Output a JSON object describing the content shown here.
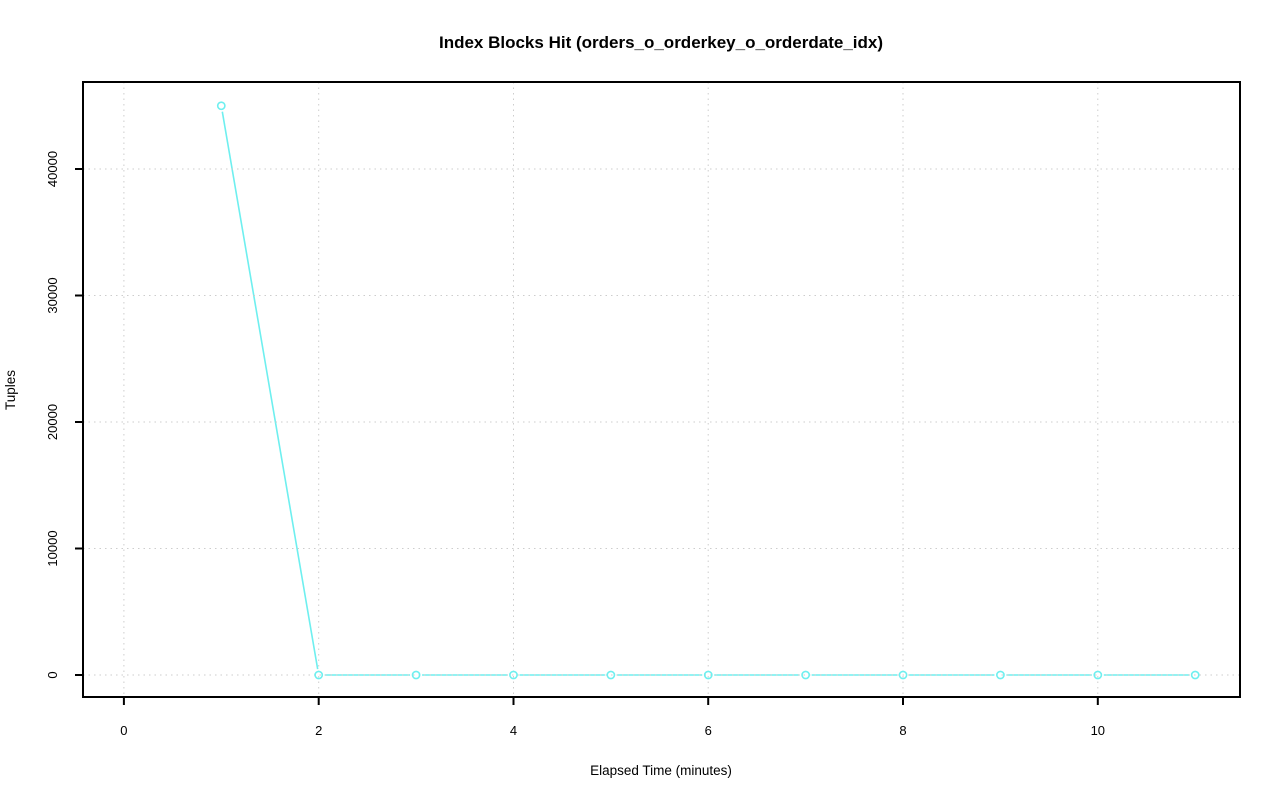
{
  "figure": {
    "background_color": "#ffffff"
  },
  "chart_data": {
    "type": "line",
    "title": "Index Blocks Hit (orders_o_orderkey_o_orderdate_idx)",
    "xlabel": "Elapsed Time (minutes)",
    "ylabel": "Tuples",
    "series": [
      {
        "name": "index-blocks-hit",
        "x": [
          1,
          2,
          3,
          4,
          5,
          6,
          7,
          8,
          9,
          10,
          11
        ],
        "y": [
          45000,
          0,
          0,
          0,
          0,
          0,
          0,
          0,
          0,
          0,
          0
        ],
        "color": "#6EEFEF",
        "marker": "open-circle",
        "line_style": "solid"
      }
    ],
    "x_ticks": [
      0,
      2,
      4,
      6,
      8,
      10
    ],
    "y_ticks": [
      0,
      10000,
      20000,
      30000,
      40000
    ],
    "xlim": [
      -0.42,
      11.46
    ],
    "ylim": [
      -1740,
      46880
    ],
    "grid": "dotted",
    "grid_color": "#CDCDCD",
    "axis_color": "#000000",
    "text_color": "#000000",
    "legend": "none",
    "plot_background": "#ffffff"
  }
}
